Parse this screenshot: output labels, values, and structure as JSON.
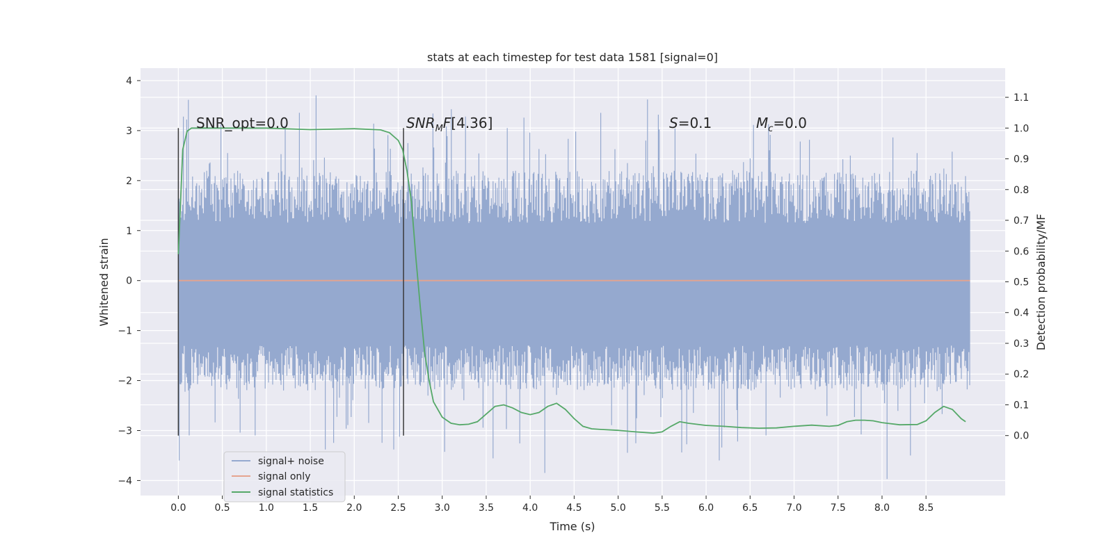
{
  "chart_data": {
    "type": "line",
    "title": "stats at each timestep for test data 1581 [signal=0]",
    "xlabel": "Time (s)",
    "ylabel": "Whitened strain",
    "y2label": "Detection probability/MF",
    "xlim": [
      -0.43,
      9.4
    ],
    "ylim": [
      -4.3,
      4.25
    ],
    "y2lim": [
      -0.195,
      1.195
    ],
    "x_ticks": [
      "0.0",
      "0.5",
      "1.0",
      "1.5",
      "2.0",
      "2.5",
      "3.0",
      "3.5",
      "4.0",
      "4.5",
      "5.0",
      "5.5",
      "6.0",
      "6.5",
      "7.0",
      "7.5",
      "8.0",
      "8.5"
    ],
    "y_ticks": [
      "4",
      "3",
      "2",
      "1",
      "0",
      "−1",
      "−2",
      "−3",
      "−4"
    ],
    "y2_ticks": [
      "1.1",
      "1.0",
      "0.9",
      "0.8",
      "0.7",
      "0.6",
      "0.5",
      "0.4",
      "0.3",
      "0.2",
      "0.1",
      "0.0"
    ],
    "grid": true,
    "legend_position": "lower-left",
    "annotations": {
      "snr_opt": "SNR_opt=0.0",
      "snr_mf": "[4.36]",
      "s_value": "=0.1",
      "mc_value": "=0.0"
    },
    "vertical_markers_x": [
      0.0,
      2.56
    ],
    "series": [
      {
        "name": "signal+ noise",
        "color": "#95a9cf",
        "x_range": [
          0.0,
          9.0
        ],
        "band_core": [
          -1.3,
          1.15
        ],
        "band_typical": [
          -2.2,
          2.2
        ],
        "peak_max": 3.85,
        "peak_min": -4.0
      },
      {
        "name": "signal only",
        "color": "#e5a38e",
        "x": [
          0.0,
          9.0
        ],
        "values": [
          0.0,
          0.0
        ]
      },
      {
        "name": "signal statistics",
        "color": "#55a868",
        "axis": "right",
        "x": [
          0.0,
          0.05,
          0.1,
          0.15,
          0.2,
          0.3,
          0.5,
          1.0,
          1.5,
          2.0,
          2.3,
          2.4,
          2.5,
          2.55,
          2.6,
          2.65,
          2.7,
          2.75,
          2.8,
          2.85,
          2.9,
          3.0,
          3.1,
          3.2,
          3.3,
          3.4,
          3.5,
          3.6,
          3.7,
          3.8,
          3.9,
          4.0,
          4.1,
          4.2,
          4.3,
          4.4,
          4.5,
          4.6,
          4.7,
          4.8,
          5.0,
          5.2,
          5.4,
          5.5,
          5.6,
          5.7,
          5.8,
          6.0,
          6.2,
          6.4,
          6.6,
          6.8,
          7.0,
          7.2,
          7.4,
          7.5,
          7.6,
          7.7,
          7.8,
          7.9,
          8.0,
          8.2,
          8.4,
          8.5,
          8.6,
          8.7,
          8.8,
          8.9,
          8.95
        ],
        "values": [
          0.59,
          0.93,
          0.99,
          1.0,
          1.0,
          1.0,
          1.0,
          1.0,
          0.995,
          0.998,
          0.994,
          0.985,
          0.96,
          0.93,
          0.86,
          0.76,
          0.58,
          0.42,
          0.27,
          0.18,
          0.11,
          0.06,
          0.04,
          0.035,
          0.037,
          0.045,
          0.07,
          0.095,
          0.1,
          0.09,
          0.075,
          0.068,
          0.075,
          0.095,
          0.105,
          0.085,
          0.055,
          0.03,
          0.022,
          0.02,
          0.017,
          0.012,
          0.008,
          0.012,
          0.03,
          0.045,
          0.04,
          0.033,
          0.03,
          0.026,
          0.024,
          0.025,
          0.03,
          0.034,
          0.03,
          0.033,
          0.045,
          0.05,
          0.05,
          0.048,
          0.042,
          0.035,
          0.036,
          0.048,
          0.075,
          0.095,
          0.085,
          0.055,
          0.045
        ]
      }
    ]
  }
}
